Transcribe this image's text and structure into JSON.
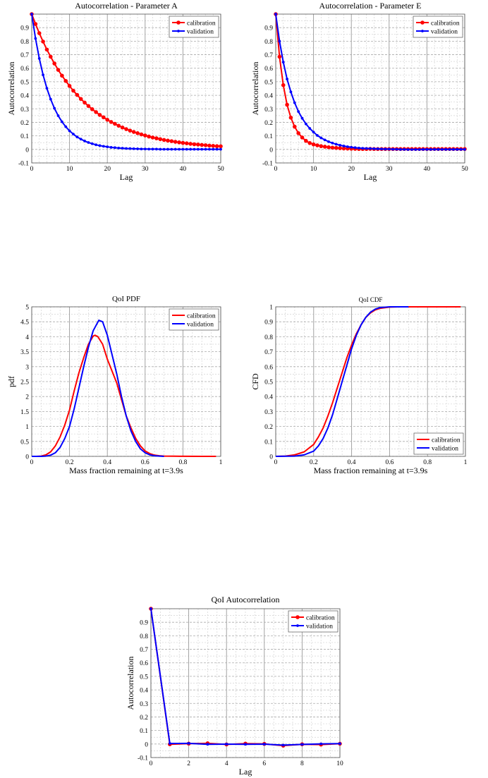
{
  "chart_data": [
    {
      "id": "acf-a",
      "type": "line",
      "title": "Autocorrelation - Parameter A",
      "xlabel": "Lag",
      "ylabel": "Autocorrelation",
      "xlim": [
        0,
        50
      ],
      "ylim": [
        -0.1,
        1
      ],
      "xticks": [
        0,
        10,
        20,
        30,
        40,
        50
      ],
      "yticks": [
        -0.1,
        0,
        0.1,
        0.2,
        0.3,
        0.4,
        0.5,
        0.6,
        0.7,
        0.8,
        0.9
      ],
      "xminor": 2,
      "yminor": 0.05,
      "grid": true,
      "legend": "top-right",
      "series": [
        {
          "name": "calibration",
          "color": "#ff0000",
          "marker": "circle",
          "y": [
            1,
            0.927,
            0.859,
            0.797,
            0.738,
            0.685,
            0.635,
            0.588,
            0.545,
            0.506,
            0.469,
            0.434,
            0.403,
            0.373,
            0.346,
            0.321,
            0.297,
            0.276,
            0.255,
            0.237,
            0.219,
            0.203,
            0.189,
            0.175,
            0.162,
            0.15,
            0.139,
            0.129,
            0.12,
            0.111,
            0.103,
            0.095,
            0.088,
            0.082,
            0.076,
            0.07,
            0.065,
            0.061,
            0.056,
            0.052,
            0.048,
            0.045,
            0.041,
            0.038,
            0.036,
            0.033,
            0.031,
            0.028,
            0.026,
            0.024,
            0.023
          ]
        },
        {
          "name": "validation",
          "color": "#0000ff",
          "marker": "star",
          "y": [
            1,
            0.82,
            0.672,
            0.551,
            0.452,
            0.371,
            0.304,
            0.249,
            0.204,
            0.168,
            0.137,
            0.113,
            0.092,
            0.076,
            0.062,
            0.051,
            0.042,
            0.034,
            0.028,
            0.023,
            0.019,
            0.015,
            0.013,
            0.01,
            0.009,
            0.007,
            0.006,
            0.005,
            0.004,
            0.003,
            0.003,
            0.002,
            0.002,
            0.002,
            0.001,
            0.001,
            0.001,
            0.001,
            0.001,
            0.001,
            0.001,
            0.001,
            0.001,
            0.001,
            0.001,
            0.001,
            0.001,
            0.001,
            0.001,
            0.001,
            0.001
          ]
        }
      ]
    },
    {
      "id": "acf-e",
      "type": "line",
      "title": "Autocorrelation - Parameter E",
      "xlabel": "Lag",
      "ylabel": "Autocorrelation",
      "xlim": [
        0,
        50
      ],
      "ylim": [
        -0.1,
        1
      ],
      "xticks": [
        0,
        10,
        20,
        30,
        40,
        50
      ],
      "yticks": [
        -0.1,
        0,
        0.1,
        0.2,
        0.3,
        0.4,
        0.5,
        0.6,
        0.7,
        0.8,
        0.9
      ],
      "xminor": 2,
      "yminor": 0.05,
      "grid": true,
      "legend": "top-right",
      "series": [
        {
          "name": "calibration",
          "color": "#ff0000",
          "marker": "circle",
          "y": [
            1,
            0.685,
            0.475,
            0.33,
            0.235,
            0.168,
            0.12,
            0.088,
            0.063,
            0.047,
            0.037,
            0.03,
            0.024,
            0.02,
            0.016,
            0.013,
            0.011,
            0.009,
            0.007,
            0.006,
            0.005,
            0.004,
            0.003,
            0.003,
            0.003,
            0.004,
            0.003,
            0.003,
            0.003,
            0.003,
            0.003,
            0.003,
            0.003,
            0.003,
            0.003,
            0.003,
            0.003,
            0.003,
            0.003,
            0.003,
            0.003,
            0.003,
            0.003,
            0.003,
            0.003,
            0.003,
            0.003,
            0.003,
            0.003,
            0.003,
            0.003
          ]
        },
        {
          "name": "validation",
          "color": "#0000ff",
          "marker": "star",
          "y": [
            1,
            0.8,
            0.645,
            0.52,
            0.425,
            0.345,
            0.28,
            0.23,
            0.188,
            0.155,
            0.128,
            0.103,
            0.085,
            0.07,
            0.057,
            0.047,
            0.038,
            0.031,
            0.025,
            0.02,
            0.016,
            0.013,
            0.01,
            0.008,
            0.007,
            0.006,
            0.005,
            0.004,
            0.003,
            0.002,
            0.002,
            0.001,
            0.001,
            0.0,
            0.0,
            -0.001,
            -0.001,
            -0.001,
            -0.001,
            0.0,
            0.0,
            0.0,
            0.0,
            0.0,
            0.0,
            0.0,
            0.0,
            0.0,
            0.0,
            0.0,
            0.0
          ]
        }
      ]
    },
    {
      "id": "qoi-pdf",
      "type": "line",
      "title": "QoI PDF",
      "xlabel": "Mass fraction remaining at t=3.9s",
      "ylabel": "pdf",
      "xlim": [
        0,
        1
      ],
      "ylim": [
        0,
        5
      ],
      "xticks": [
        0,
        0.2,
        0.4,
        0.6,
        0.8,
        1
      ],
      "yticks": [
        0,
        0.5,
        1,
        1.5,
        2,
        2.5,
        3,
        3.5,
        4,
        4.5,
        5
      ],
      "xminor": 0.05,
      "yminor": 0.25,
      "grid": true,
      "legend": "top-right",
      "series": [
        {
          "name": "calibration",
          "color": "#ff0000",
          "marker": "none",
          "x": [
            0,
            0.025,
            0.05,
            0.075,
            0.1,
            0.125,
            0.15,
            0.175,
            0.2,
            0.225,
            0.25,
            0.275,
            0.3,
            0.325,
            0.335,
            0.35,
            0.375,
            0.4,
            0.425,
            0.45,
            0.475,
            0.5,
            0.525,
            0.55,
            0.575,
            0.6,
            0.625,
            0.65,
            0.675,
            0.7,
            0.75,
            0.8,
            0.9,
            0.975
          ],
          "y": [
            0,
            0,
            0.01,
            0.05,
            0.15,
            0.35,
            0.65,
            1.05,
            1.55,
            2.2,
            2.8,
            3.3,
            3.75,
            4.02,
            4.05,
            4.0,
            3.75,
            3.25,
            2.85,
            2.45,
            1.9,
            1.35,
            0.95,
            0.6,
            0.35,
            0.18,
            0.09,
            0.04,
            0.02,
            0.01,
            0.005,
            0.002,
            0.001,
            0
          ]
        },
        {
          "name": "validation",
          "color": "#0000ff",
          "marker": "none",
          "x": [
            0,
            0.05,
            0.075,
            0.1,
            0.125,
            0.15,
            0.175,
            0.2,
            0.225,
            0.25,
            0.275,
            0.3,
            0.325,
            0.355,
            0.375,
            0.4,
            0.425,
            0.45,
            0.475,
            0.5,
            0.525,
            0.55,
            0.575,
            0.6,
            0.625,
            0.65,
            0.675,
            0.7
          ],
          "y": [
            0,
            0,
            0.01,
            0.04,
            0.12,
            0.3,
            0.6,
            1.0,
            1.6,
            2.3,
            3.0,
            3.65,
            4.2,
            4.55,
            4.5,
            4.05,
            3.4,
            2.75,
            2.0,
            1.35,
            0.85,
            0.5,
            0.25,
            0.12,
            0.05,
            0.02,
            0.01,
            0
          ]
        }
      ]
    },
    {
      "id": "qoi-cdf",
      "type": "line",
      "title": "QoI CDF",
      "xlabel": "Mass fraction remaining at t=3.9s",
      "ylabel": "CFD",
      "xlim": [
        0,
        1
      ],
      "ylim": [
        0,
        1
      ],
      "xticks": [
        0,
        0.2,
        0.4,
        0.6,
        0.8,
        1
      ],
      "yticks": [
        0,
        0.1,
        0.2,
        0.3,
        0.4,
        0.5,
        0.6,
        0.7,
        0.8,
        0.9,
        1
      ],
      "xminor": 0.05,
      "yminor": 0.05,
      "grid": true,
      "legend": "bottom-right",
      "series": [
        {
          "name": "calibration",
          "color": "#ff0000",
          "marker": "none",
          "x": [
            0,
            0.05,
            0.1,
            0.15,
            0.2,
            0.225,
            0.25,
            0.275,
            0.3,
            0.325,
            0.35,
            0.375,
            0.4,
            0.425,
            0.45,
            0.475,
            0.5,
            0.525,
            0.55,
            0.6,
            0.65,
            0.975
          ],
          "y": [
            0,
            0.002,
            0.01,
            0.03,
            0.08,
            0.13,
            0.19,
            0.27,
            0.36,
            0.46,
            0.56,
            0.66,
            0.745,
            0.82,
            0.88,
            0.93,
            0.96,
            0.98,
            0.99,
            0.998,
            1,
            1
          ]
        },
        {
          "name": "validation",
          "color": "#0000ff",
          "marker": "none",
          "x": [
            0,
            0.1,
            0.15,
            0.2,
            0.225,
            0.25,
            0.275,
            0.3,
            0.325,
            0.35,
            0.375,
            0.4,
            0.425,
            0.45,
            0.475,
            0.5,
            0.525,
            0.55,
            0.6,
            0.65,
            0.7
          ],
          "y": [
            0,
            0.002,
            0.01,
            0.035,
            0.07,
            0.12,
            0.19,
            0.28,
            0.39,
            0.5,
            0.61,
            0.72,
            0.81,
            0.88,
            0.93,
            0.965,
            0.985,
            0.995,
            1,
            1,
            1
          ]
        }
      ]
    },
    {
      "id": "qoi-acf",
      "type": "line",
      "title": "QoI Autocorrelation",
      "xlabel": "Lag",
      "ylabel": "Autocorrelation",
      "xlim": [
        0,
        10
      ],
      "ylim": [
        -0.1,
        1
      ],
      "xticks": [
        0,
        2,
        4,
        6,
        8,
        10
      ],
      "yticks": [
        -0.1,
        0,
        0.1,
        0.2,
        0.3,
        0.4,
        0.5,
        0.6,
        0.7,
        0.8,
        0.9
      ],
      "xminor": 0.5,
      "yminor": 0.05,
      "grid": true,
      "legend": "top-right",
      "series": [
        {
          "name": "calibration",
          "color": "#ff0000",
          "marker": "circle",
          "y": [
            1,
            -0.002,
            0.003,
            0.005,
            -0.003,
            0.003,
            0.001,
            -0.012,
            -0.002,
            -0.004,
            0.002
          ]
        },
        {
          "name": "validation",
          "color": "#0000ff",
          "marker": "star",
          "y": [
            1,
            0.004,
            0.005,
            -0.002,
            -0.001,
            -0.002,
            -0.001,
            -0.008,
            -0.003,
            0.001,
            0.003
          ]
        }
      ]
    }
  ]
}
